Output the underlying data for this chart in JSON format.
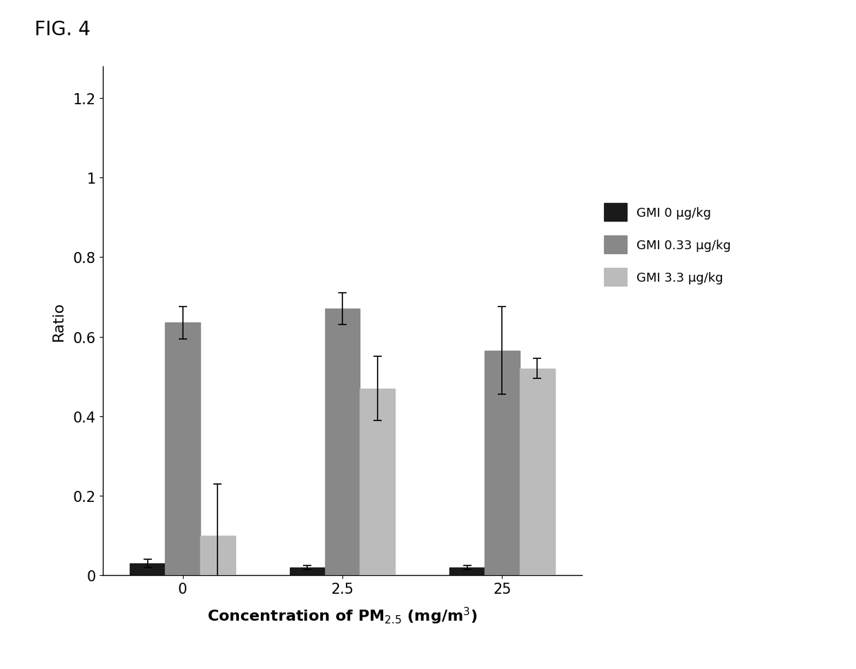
{
  "title": "FIG. 4",
  "categories": [
    "0",
    "2.5",
    "25"
  ],
  "series": [
    {
      "label": "GMI 0 μg/kg",
      "values": [
        0.03,
        0.02,
        0.02
      ],
      "errors": [
        0.01,
        0.005,
        0.005
      ],
      "color": "#1a1a1a",
      "hatch": "..."
    },
    {
      "label": "GMI 0.33 μg/kg",
      "values": [
        0.635,
        0.67,
        0.565
      ],
      "errors": [
        0.04,
        0.04,
        0.11
      ],
      "color": "#888888",
      "hatch": "..."
    },
    {
      "label": "GMI 3.3 μg/kg",
      "values": [
        0.1,
        0.47,
        0.52
      ],
      "errors": [
        0.13,
        0.08,
        0.025
      ],
      "color": "#bbbbbb",
      "hatch": "..."
    }
  ],
  "ylabel": "Ratio",
  "xlabel_text": "Concentration of PM$_{2.5}$ (mg/m$^3$)",
  "ylim": [
    0,
    1.28
  ],
  "yticks": [
    0,
    0.2,
    0.4,
    0.6,
    0.8,
    1.0,
    1.2
  ],
  "ytick_labels": [
    "0",
    "0.2",
    "0.4",
    "0.6",
    "0.8",
    "1",
    "1.2"
  ],
  "bar_width": 0.22,
  "group_positions": [
    0,
    1,
    2
  ],
  "background_color": "#ffffff",
  "fig_label": "FIG. 4"
}
